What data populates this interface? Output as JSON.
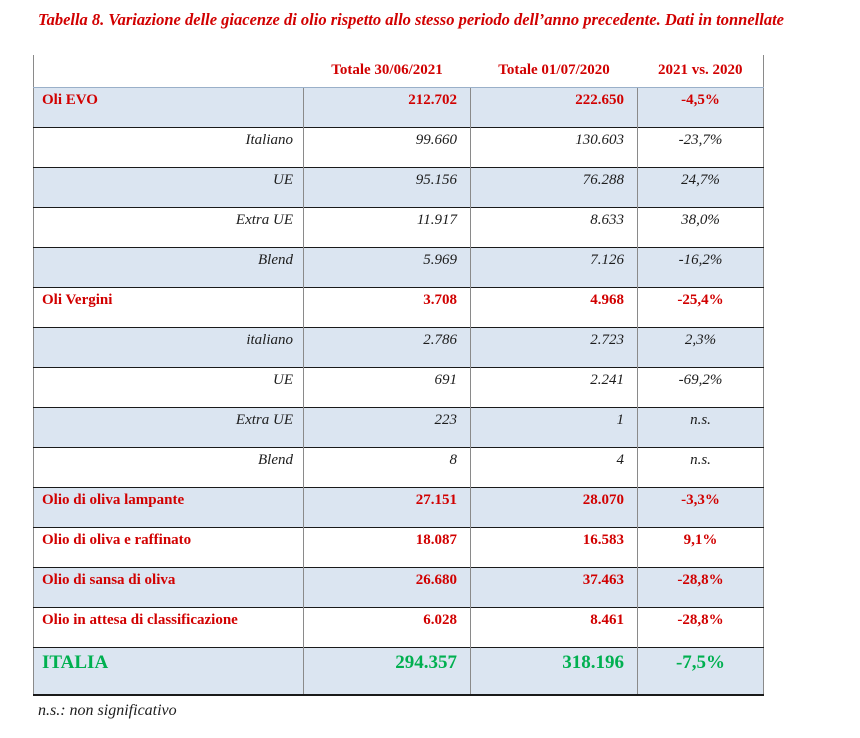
{
  "title": "Tabella 8. Variazione delle giacenze di olio rispetto allo stesso periodo dell’anno precedente. Dati in tonnellate",
  "table": {
    "headers": [
      "Totale 30/06/2021",
      "Totale 01/07/2020",
      "2021 vs. 2020"
    ],
    "rows": [
      {
        "label": "Oli EVO",
        "v2021": "212.702",
        "v2020": "222.650",
        "delta": "-4,5%"
      },
      {
        "label": "Italiano",
        "v2021": "99.660",
        "v2020": "130.603",
        "delta": "-23,7%"
      },
      {
        "label": "UE",
        "v2021": "95.156",
        "v2020": "76.288",
        "delta": "24,7%"
      },
      {
        "label": "Extra UE",
        "v2021": "11.917",
        "v2020": "8.633",
        "delta": "38,0%"
      },
      {
        "label": "Blend",
        "v2021": "5.969",
        "v2020": "7.126",
        "delta": "-16,2%"
      },
      {
        "label": "Oli Vergini",
        "v2021": "3.708",
        "v2020": "4.968",
        "delta": "-25,4%"
      },
      {
        "label": "italiano",
        "v2021": "2.786",
        "v2020": "2.723",
        "delta": "2,3%"
      },
      {
        "label": "UE",
        "v2021": "691",
        "v2020": "2.241",
        "delta": "-69,2%"
      },
      {
        "label": "Extra UE",
        "v2021": "223",
        "v2020": "1",
        "delta": "n.s."
      },
      {
        "label": "Blend",
        "v2021": "8",
        "v2020": "4",
        "delta": "n.s."
      },
      {
        "label": "Olio di oliva lampante",
        "v2021": "27.151",
        "v2020": "28.070",
        "delta": "-3,3%"
      },
      {
        "label": "Olio di oliva e raffinato",
        "v2021": "18.087",
        "v2020": "16.583",
        "delta": "9,1%"
      },
      {
        "label": "Olio di sansa di oliva",
        "v2021": "26.680",
        "v2020": "37.463",
        "delta": "-28,8%"
      },
      {
        "label": "Olio in attesa di classificazione",
        "v2021": "6.028",
        "v2020": "8.461",
        "delta": "-28,8%"
      },
      {
        "label": "ITALIA",
        "v2021": "294.357",
        "v2020": "318.196",
        "delta": "-7,5%"
      }
    ]
  },
  "footnote": "n.s.: non significativo",
  "colors": {
    "red": "#d10000",
    "green": "#00b050",
    "shade": "#dbe5f1",
    "border-gray": "#8a8a8a",
    "border-dark": "#1a1a1a"
  }
}
